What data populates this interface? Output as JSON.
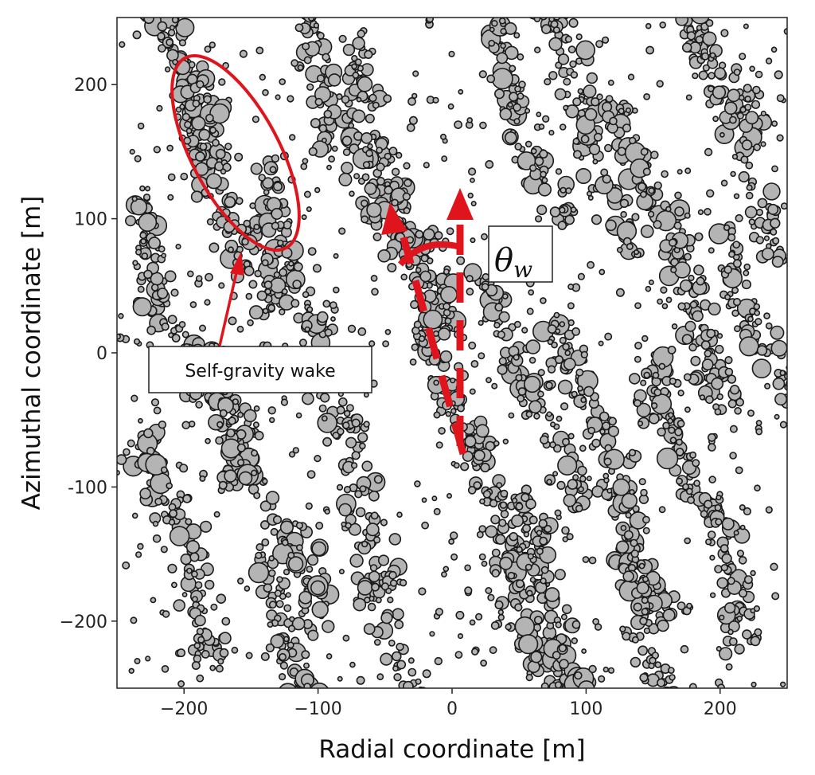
{
  "chart_data": {
    "type": "scatter",
    "title": "",
    "xlabel": "Radial coordinate [m]",
    "ylabel": "Azimuthal coordinate [m]",
    "xlim": [
      -250,
      250
    ],
    "ylim": [
      -250,
      250
    ],
    "xticks": [
      -200,
      -100,
      0,
      100,
      200
    ],
    "yticks": [
      200,
      100,
      0,
      -100,
      -200
    ],
    "xtick_labels": [
      "−200",
      "−100",
      "0",
      "100",
      "200"
    ],
    "ytick_labels": [
      "200",
      "100",
      "0",
      "-100",
      "−200"
    ],
    "grid": false,
    "marker_fill": "#b4b4b4",
    "marker_edge": "#1a1a1a",
    "wake_angle_deg": 20,
    "wakes": [
      {
        "x": -200,
        "y": 200,
        "length": 140,
        "width": 34
      },
      {
        "x": -165,
        "y": 115,
        "length": 190,
        "width": 38
      },
      {
        "x": -115,
        "y": 60,
        "length": 180,
        "width": 30
      },
      {
        "x": -215,
        "y": 35,
        "length": 160,
        "width": 32
      },
      {
        "x": -95,
        "y": 205,
        "length": 140,
        "width": 30
      },
      {
        "x": -40,
        "y": 120,
        "length": 230,
        "width": 32
      },
      {
        "x": 10,
        "y": -55,
        "length": 420,
        "width": 38
      },
      {
        "x": 55,
        "y": 170,
        "length": 160,
        "width": 28
      },
      {
        "x": 100,
        "y": 175,
        "length": 220,
        "width": 30
      },
      {
        "x": 165,
        "y": 80,
        "length": 260,
        "width": 34
      },
      {
        "x": 215,
        "y": 160,
        "length": 200,
        "width": 34
      },
      {
        "x": 230,
        "y": 20,
        "length": 160,
        "width": 30
      },
      {
        "x": 60,
        "y": -30,
        "length": 200,
        "width": 30
      },
      {
        "x": 120,
        "y": -90,
        "length": 240,
        "width": 34
      },
      {
        "x": 185,
        "y": -110,
        "length": 230,
        "width": 34
      },
      {
        "x": 75,
        "y": -185,
        "length": 170,
        "width": 30
      },
      {
        "x": 150,
        "y": -215,
        "length": 150,
        "width": 28
      },
      {
        "x": -200,
        "y": -150,
        "length": 190,
        "width": 36
      },
      {
        "x": -135,
        "y": -110,
        "length": 210,
        "width": 34
      },
      {
        "x": -75,
        "y": -90,
        "length": 190,
        "width": 30
      },
      {
        "x": -125,
        "y": -210,
        "length": 140,
        "width": 30
      },
      {
        "x": -40,
        "y": -220,
        "length": 130,
        "width": 28
      },
      {
        "x": -175,
        "y": -40,
        "length": 120,
        "width": 28
      }
    ]
  },
  "annotations": {
    "wake_label": "Self-gravity wake",
    "angle_symbol": "θ",
    "angle_subscript": "w",
    "color": "#e0141c"
  }
}
